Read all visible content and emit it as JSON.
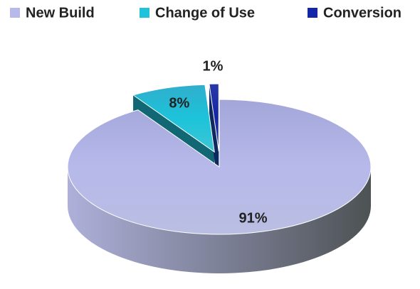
{
  "chart_data": {
    "type": "pie",
    "categories": [
      "New Build",
      "Change of Use",
      "Conversion"
    ],
    "values": [
      91,
      8,
      1
    ],
    "value_labels": [
      "91%",
      "8%",
      "1%"
    ],
    "colors": [
      "#b6b9ea",
      "#1cc3da",
      "#1426a8"
    ],
    "legend": "top"
  }
}
